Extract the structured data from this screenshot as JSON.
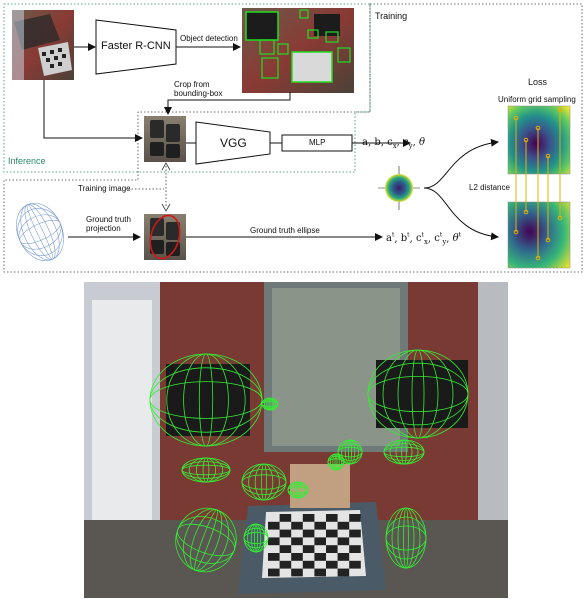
{
  "diagram": {
    "labels": {
      "faster_rcnn": "Faster R-CNN",
      "object_detection": "Object detection",
      "crop_from_bbox": "Crop from\nbounding-box",
      "training": "Training",
      "inference": "Inference",
      "vgg": "VGG",
      "mlp": "MLP",
      "training_image": "Training image",
      "gt_projection": "Ground truth\nprojection",
      "gt_ellipse": "Ground truth ellipse",
      "loss": "Loss",
      "uniform_grid_sampling": "Uniform grid sampling",
      "l2_distance": "L2 distance"
    },
    "pred_params": [
      "a",
      "b",
      "c",
      "x",
      "c",
      "y",
      "θ"
    ],
    "gt_params": [
      "a",
      "b",
      "c",
      "x",
      "c",
      "y",
      "θ"
    ],
    "colors": {
      "training_border": "#444444",
      "inference_border": "#2a8a6a",
      "inference_text": "#2a8a6a",
      "detection_box": "#22dd22",
      "ellipse_red": "#d01818",
      "wireframe": "#7f9fd0",
      "loss_low": "#440154",
      "loss_high": "#fde725",
      "sample_lines": "#e6b000"
    }
  }
}
